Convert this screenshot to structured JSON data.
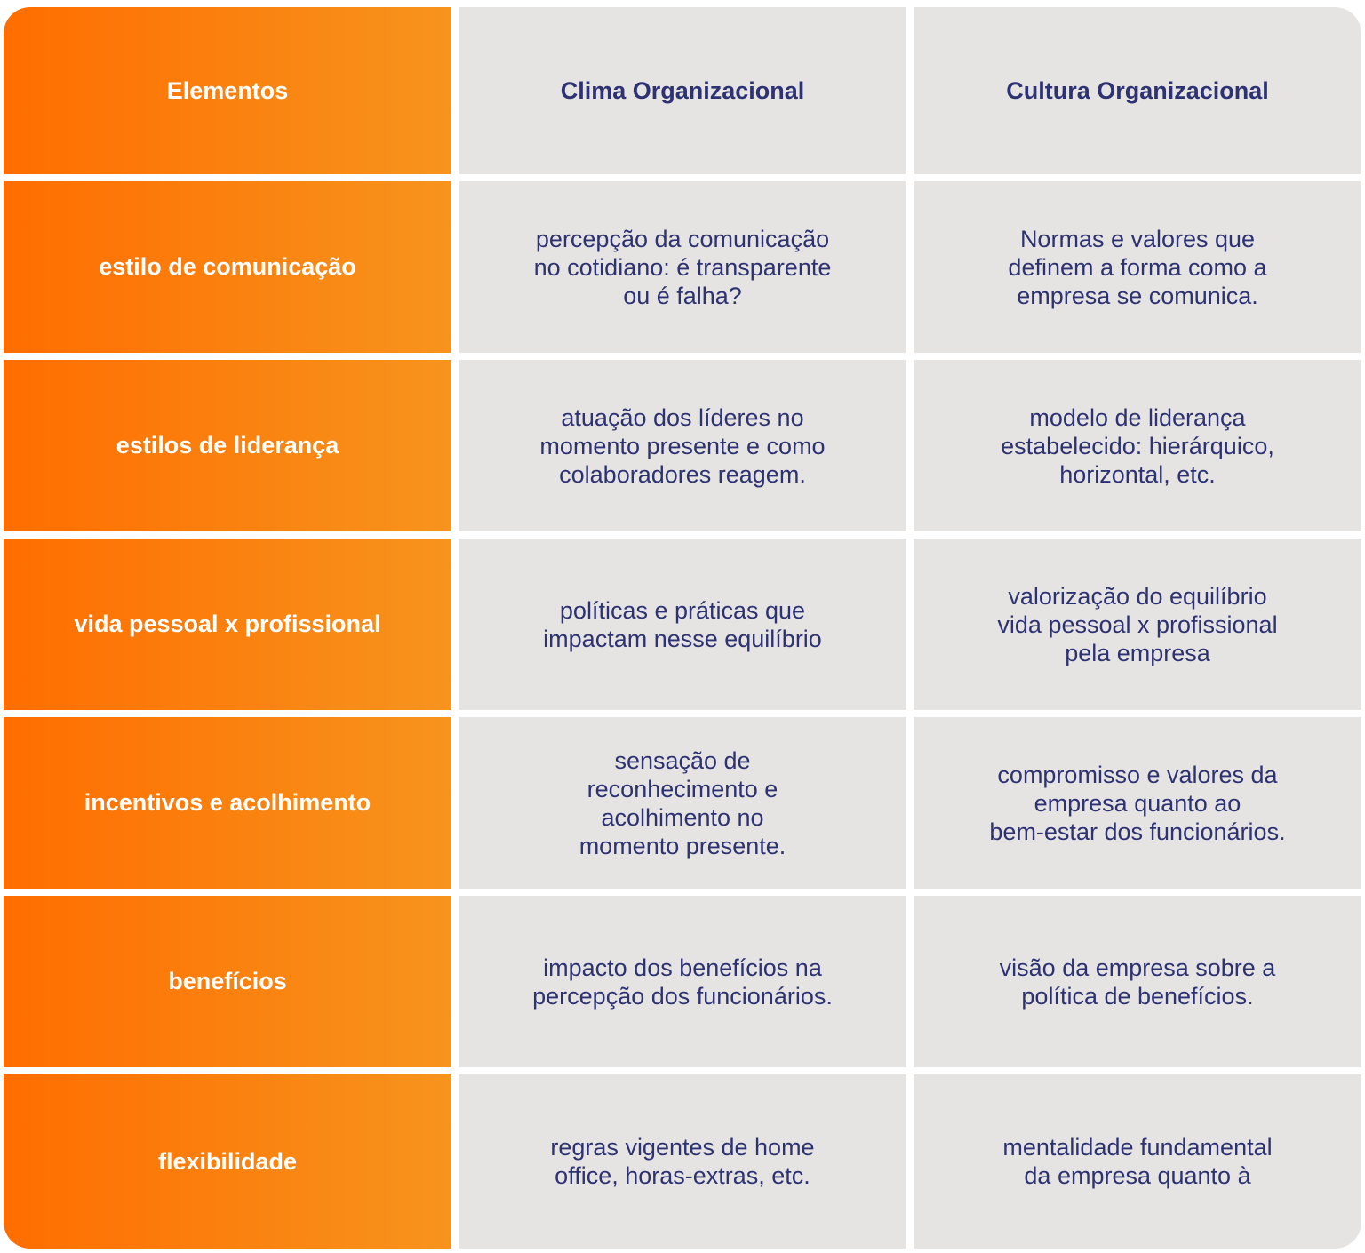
{
  "table": {
    "header": [
      "Elementos",
      "Clima Organizacional",
      "Cultura Organizacional"
    ],
    "rows": [
      [
        [
          "estilo de comunicação"
        ],
        [
          "percepção da comunicação",
          "no cotidiano: é transparente",
          "ou é falha?"
        ],
        [
          "Normas e valores que",
          "definem a forma como a",
          "empresa se comunica."
        ]
      ],
      [
        [
          "estilos de liderança"
        ],
        [
          "atuação dos líderes no",
          "momento presente e como",
          "colaboradores reagem."
        ],
        [
          "modelo de liderança",
          "estabelecido: hierárquico,",
          "horizontal, etc."
        ]
      ],
      [
        [
          "vida pessoal x profissional"
        ],
        [
          "políticas e práticas que",
          "impactam nesse equilíbrio"
        ],
        [
          "valorização do equilíbrio",
          "vida pessoal x profissional",
          "pela empresa"
        ]
      ],
      [
        [
          "incentivos e acolhimento"
        ],
        [
          "sensação de",
          "reconhecimento e",
          "acolhimento no",
          "momento presente."
        ],
        [
          "compromisso e valores da",
          "empresa quanto ao",
          "bem-estar dos funcionários."
        ]
      ],
      [
        [
          "benefícios"
        ],
        [
          "impacto dos benefícios na",
          "percepção dos funcionários."
        ],
        [
          "visão da empresa sobre a",
          "política de benefícios."
        ]
      ],
      [
        [
          "flexibilidade"
        ],
        [
          "regras vigentes de home",
          "office, horas-extras, etc."
        ],
        [
          "mentalidade fundamental",
          "da empresa quanto à"
        ]
      ]
    ]
  }
}
